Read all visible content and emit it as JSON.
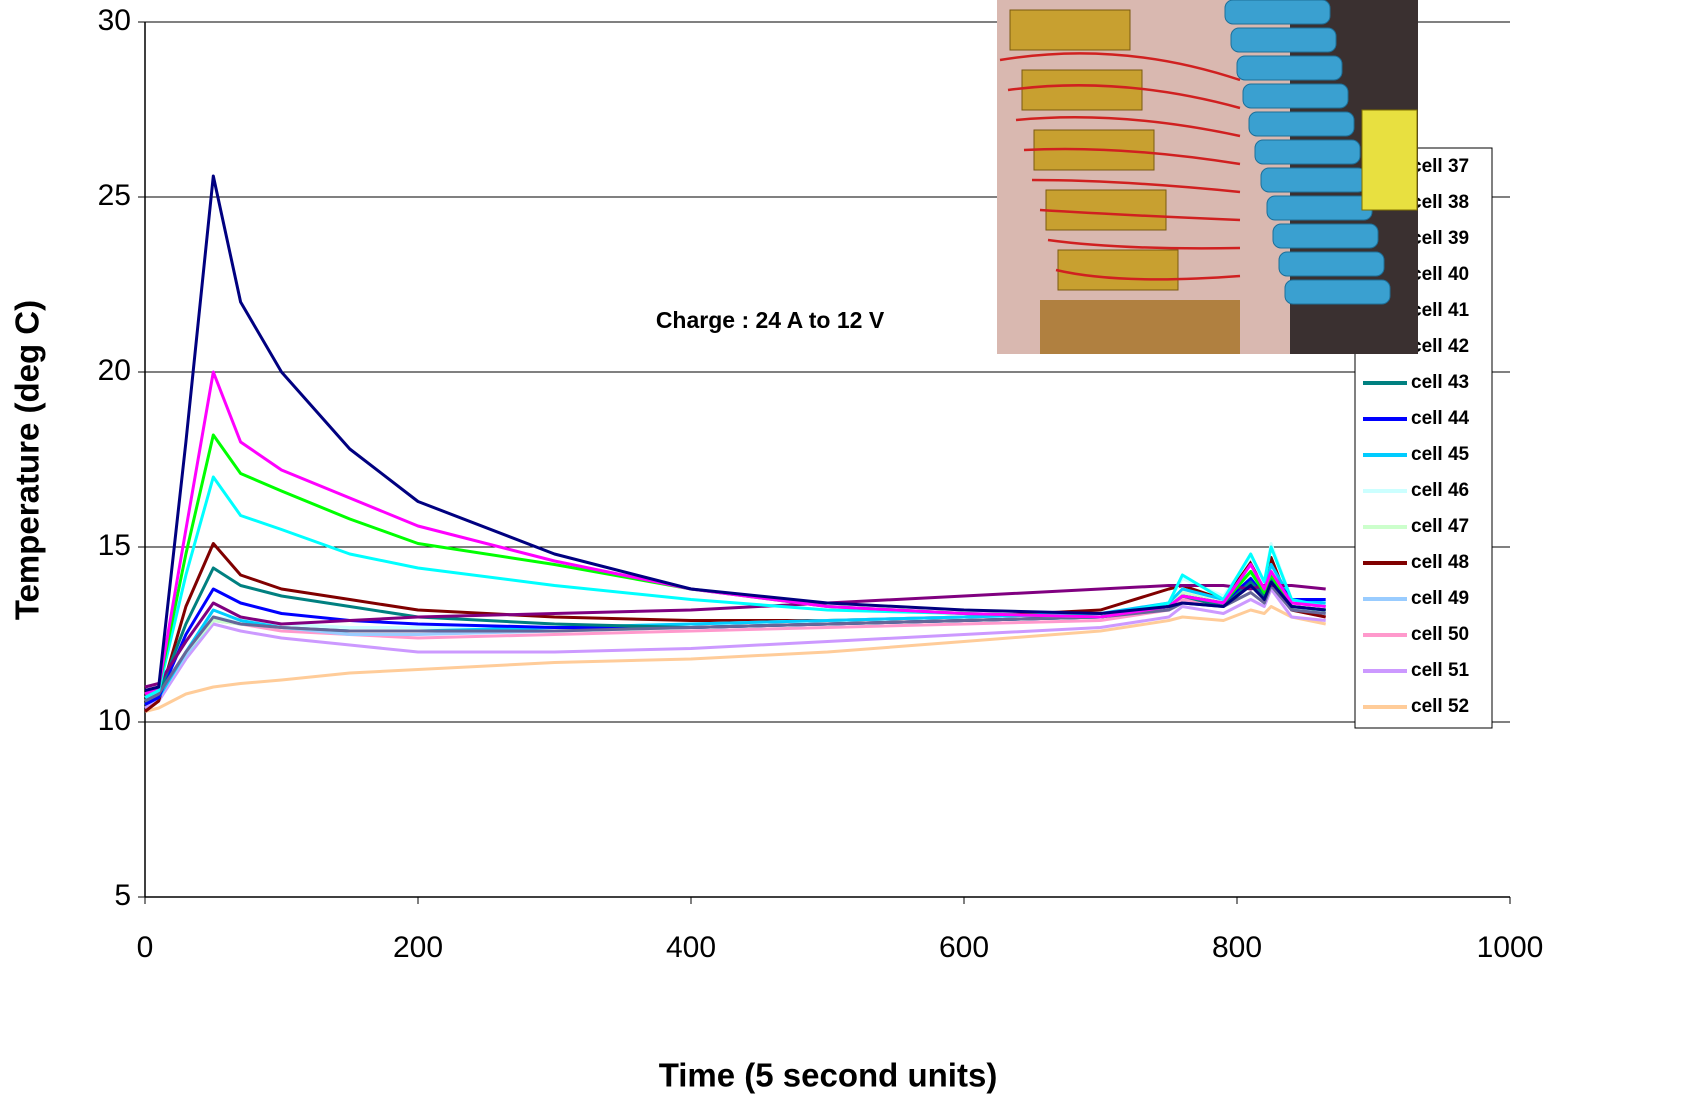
{
  "chart_data": {
    "type": "line",
    "annotation": "Charge : 24 A to 12 V",
    "x_label": "Time (5 second units)",
    "y_label": "Temperature (deg C)",
    "x": [
      0,
      10,
      30,
      50,
      70,
      100,
      150,
      200,
      300,
      400,
      500,
      600,
      700,
      750,
      760,
      790,
      810,
      820,
      825,
      840,
      865
    ],
    "series": [
      {
        "name": "cell 37",
        "color": "#000080",
        "values": [
          10.9,
          11.0,
          18.0,
          25.6,
          22.0,
          20.0,
          17.8,
          16.3,
          14.8,
          13.8,
          13.4,
          13.2,
          13.1,
          13.3,
          13.4,
          13.3,
          13.9,
          13.5,
          14.0,
          13.3,
          13.2
        ]
      },
      {
        "name": "cell 38",
        "color": "#ff00ff",
        "values": [
          10.8,
          11.0,
          15.5,
          20.0,
          18.0,
          17.2,
          16.4,
          15.6,
          14.6,
          13.8,
          13.3,
          13.1,
          13.0,
          13.3,
          13.6,
          13.4,
          14.5,
          13.8,
          14.3,
          13.4,
          13.3
        ]
      },
      {
        "name": "cell 39",
        "color": "#00ff00",
        "values": [
          10.8,
          11.0,
          14.8,
          18.2,
          17.1,
          16.6,
          15.8,
          15.1,
          14.5,
          13.8,
          13.3,
          13.1,
          13.0,
          13.3,
          13.6,
          13.4,
          14.3,
          13.7,
          14.2,
          13.3,
          13.2
        ]
      },
      {
        "name": "cell 40",
        "color": "#00ffff",
        "values": [
          10.7,
          10.9,
          14.2,
          17.0,
          15.9,
          15.5,
          14.8,
          14.4,
          13.9,
          13.5,
          13.2,
          13.1,
          13.0,
          13.4,
          14.2,
          13.5,
          14.8,
          14.0,
          15.0,
          13.5,
          13.3
        ]
      },
      {
        "name": "cell 41",
        "color": "#800080",
        "values": [
          11.0,
          11.1,
          12.3,
          13.4,
          13.0,
          12.8,
          12.9,
          13.0,
          13.1,
          13.2,
          13.4,
          13.6,
          13.8,
          13.9,
          13.9,
          13.9,
          13.8,
          13.9,
          13.9,
          13.9,
          13.8
        ]
      },
      {
        "name": "cell 42",
        "color": "#666699",
        "values": [
          10.6,
          10.8,
          12.0,
          13.0,
          12.8,
          12.7,
          12.6,
          12.6,
          12.6,
          12.7,
          12.8,
          12.9,
          13.0,
          13.2,
          13.4,
          13.3,
          13.7,
          13.4,
          13.9,
          13.2,
          13.1
        ]
      },
      {
        "name": "cell 43",
        "color": "#008080",
        "values": [
          10.6,
          10.8,
          12.8,
          14.4,
          13.9,
          13.6,
          13.3,
          13.0,
          12.8,
          12.7,
          12.8,
          12.9,
          13.0,
          13.3,
          13.6,
          13.3,
          14.0,
          13.6,
          14.1,
          13.3,
          13.2
        ]
      },
      {
        "name": "cell 44",
        "color": "#0000ff",
        "values": [
          10.5,
          10.7,
          12.5,
          13.8,
          13.4,
          13.1,
          12.9,
          12.8,
          12.7,
          12.7,
          12.8,
          12.9,
          13.0,
          13.3,
          13.6,
          13.4,
          14.1,
          13.6,
          14.2,
          13.5,
          13.5
        ]
      },
      {
        "name": "cell 45",
        "color": "#00ccff",
        "values": [
          10.5,
          10.7,
          12.0,
          13.2,
          12.9,
          12.7,
          12.6,
          12.6,
          12.7,
          12.8,
          12.9,
          13.0,
          13.1,
          13.4,
          13.8,
          13.5,
          14.3,
          13.7,
          14.5,
          13.5,
          13.4
        ]
      },
      {
        "name": "cell 46",
        "color": "#ccffff",
        "values": [
          10.6,
          10.8,
          12.0,
          13.0,
          12.9,
          12.8,
          12.7,
          12.7,
          12.7,
          12.8,
          12.9,
          13.0,
          13.1,
          13.4,
          14.1,
          13.6,
          14.7,
          14.0,
          15.1,
          13.5,
          13.3
        ]
      },
      {
        "name": "cell 47",
        "color": "#ccffcc",
        "values": [
          10.6,
          10.8,
          12.0,
          12.9,
          12.8,
          12.7,
          12.6,
          12.6,
          12.6,
          12.7,
          12.8,
          12.9,
          13.0,
          13.3,
          13.7,
          13.4,
          14.2,
          13.6,
          14.3,
          13.3,
          13.2
        ]
      },
      {
        "name": "cell 48",
        "color": "#800000",
        "values": [
          10.3,
          10.6,
          13.3,
          15.1,
          14.2,
          13.8,
          13.5,
          13.2,
          13.0,
          12.9,
          12.9,
          13.0,
          13.2,
          13.8,
          13.9,
          13.5,
          14.6,
          13.7,
          14.7,
          13.2,
          13.0
        ]
      },
      {
        "name": "cell 49",
        "color": "#99ccff",
        "values": [
          10.5,
          10.7,
          11.9,
          12.9,
          12.8,
          12.7,
          12.5,
          12.5,
          12.6,
          12.7,
          12.8,
          12.9,
          13.0,
          13.3,
          13.6,
          13.4,
          14.0,
          13.6,
          14.2,
          13.3,
          13.1
        ]
      },
      {
        "name": "cell 50",
        "color": "#ff99cc",
        "values": [
          10.5,
          10.7,
          11.9,
          12.9,
          12.8,
          12.6,
          12.5,
          12.4,
          12.5,
          12.6,
          12.7,
          12.8,
          12.9,
          13.2,
          13.5,
          13.3,
          14.0,
          13.5,
          14.1,
          13.2,
          13.0
        ]
      },
      {
        "name": "cell 51",
        "color": "#cc99ff",
        "values": [
          10.4,
          10.6,
          11.8,
          12.8,
          12.6,
          12.4,
          12.2,
          12.0,
          12.0,
          12.1,
          12.3,
          12.5,
          12.7,
          13.0,
          13.3,
          13.1,
          13.5,
          13.3,
          13.8,
          13.0,
          12.9
        ]
      },
      {
        "name": "cell 52",
        "color": "#ffcc99",
        "values": [
          10.3,
          10.4,
          10.8,
          11.0,
          11.1,
          11.2,
          11.4,
          11.5,
          11.7,
          11.8,
          12.0,
          12.3,
          12.6,
          12.9,
          13.0,
          12.9,
          13.2,
          13.1,
          13.3,
          13.0,
          12.8
        ]
      }
    ],
    "xlim": [
      0,
      1000
    ],
    "xticks": [
      0,
      200,
      400,
      600,
      800,
      1000
    ],
    "ylim": [
      5,
      30
    ],
    "yticks": [
      5,
      10,
      15,
      20,
      25,
      30
    ],
    "grid": true
  }
}
